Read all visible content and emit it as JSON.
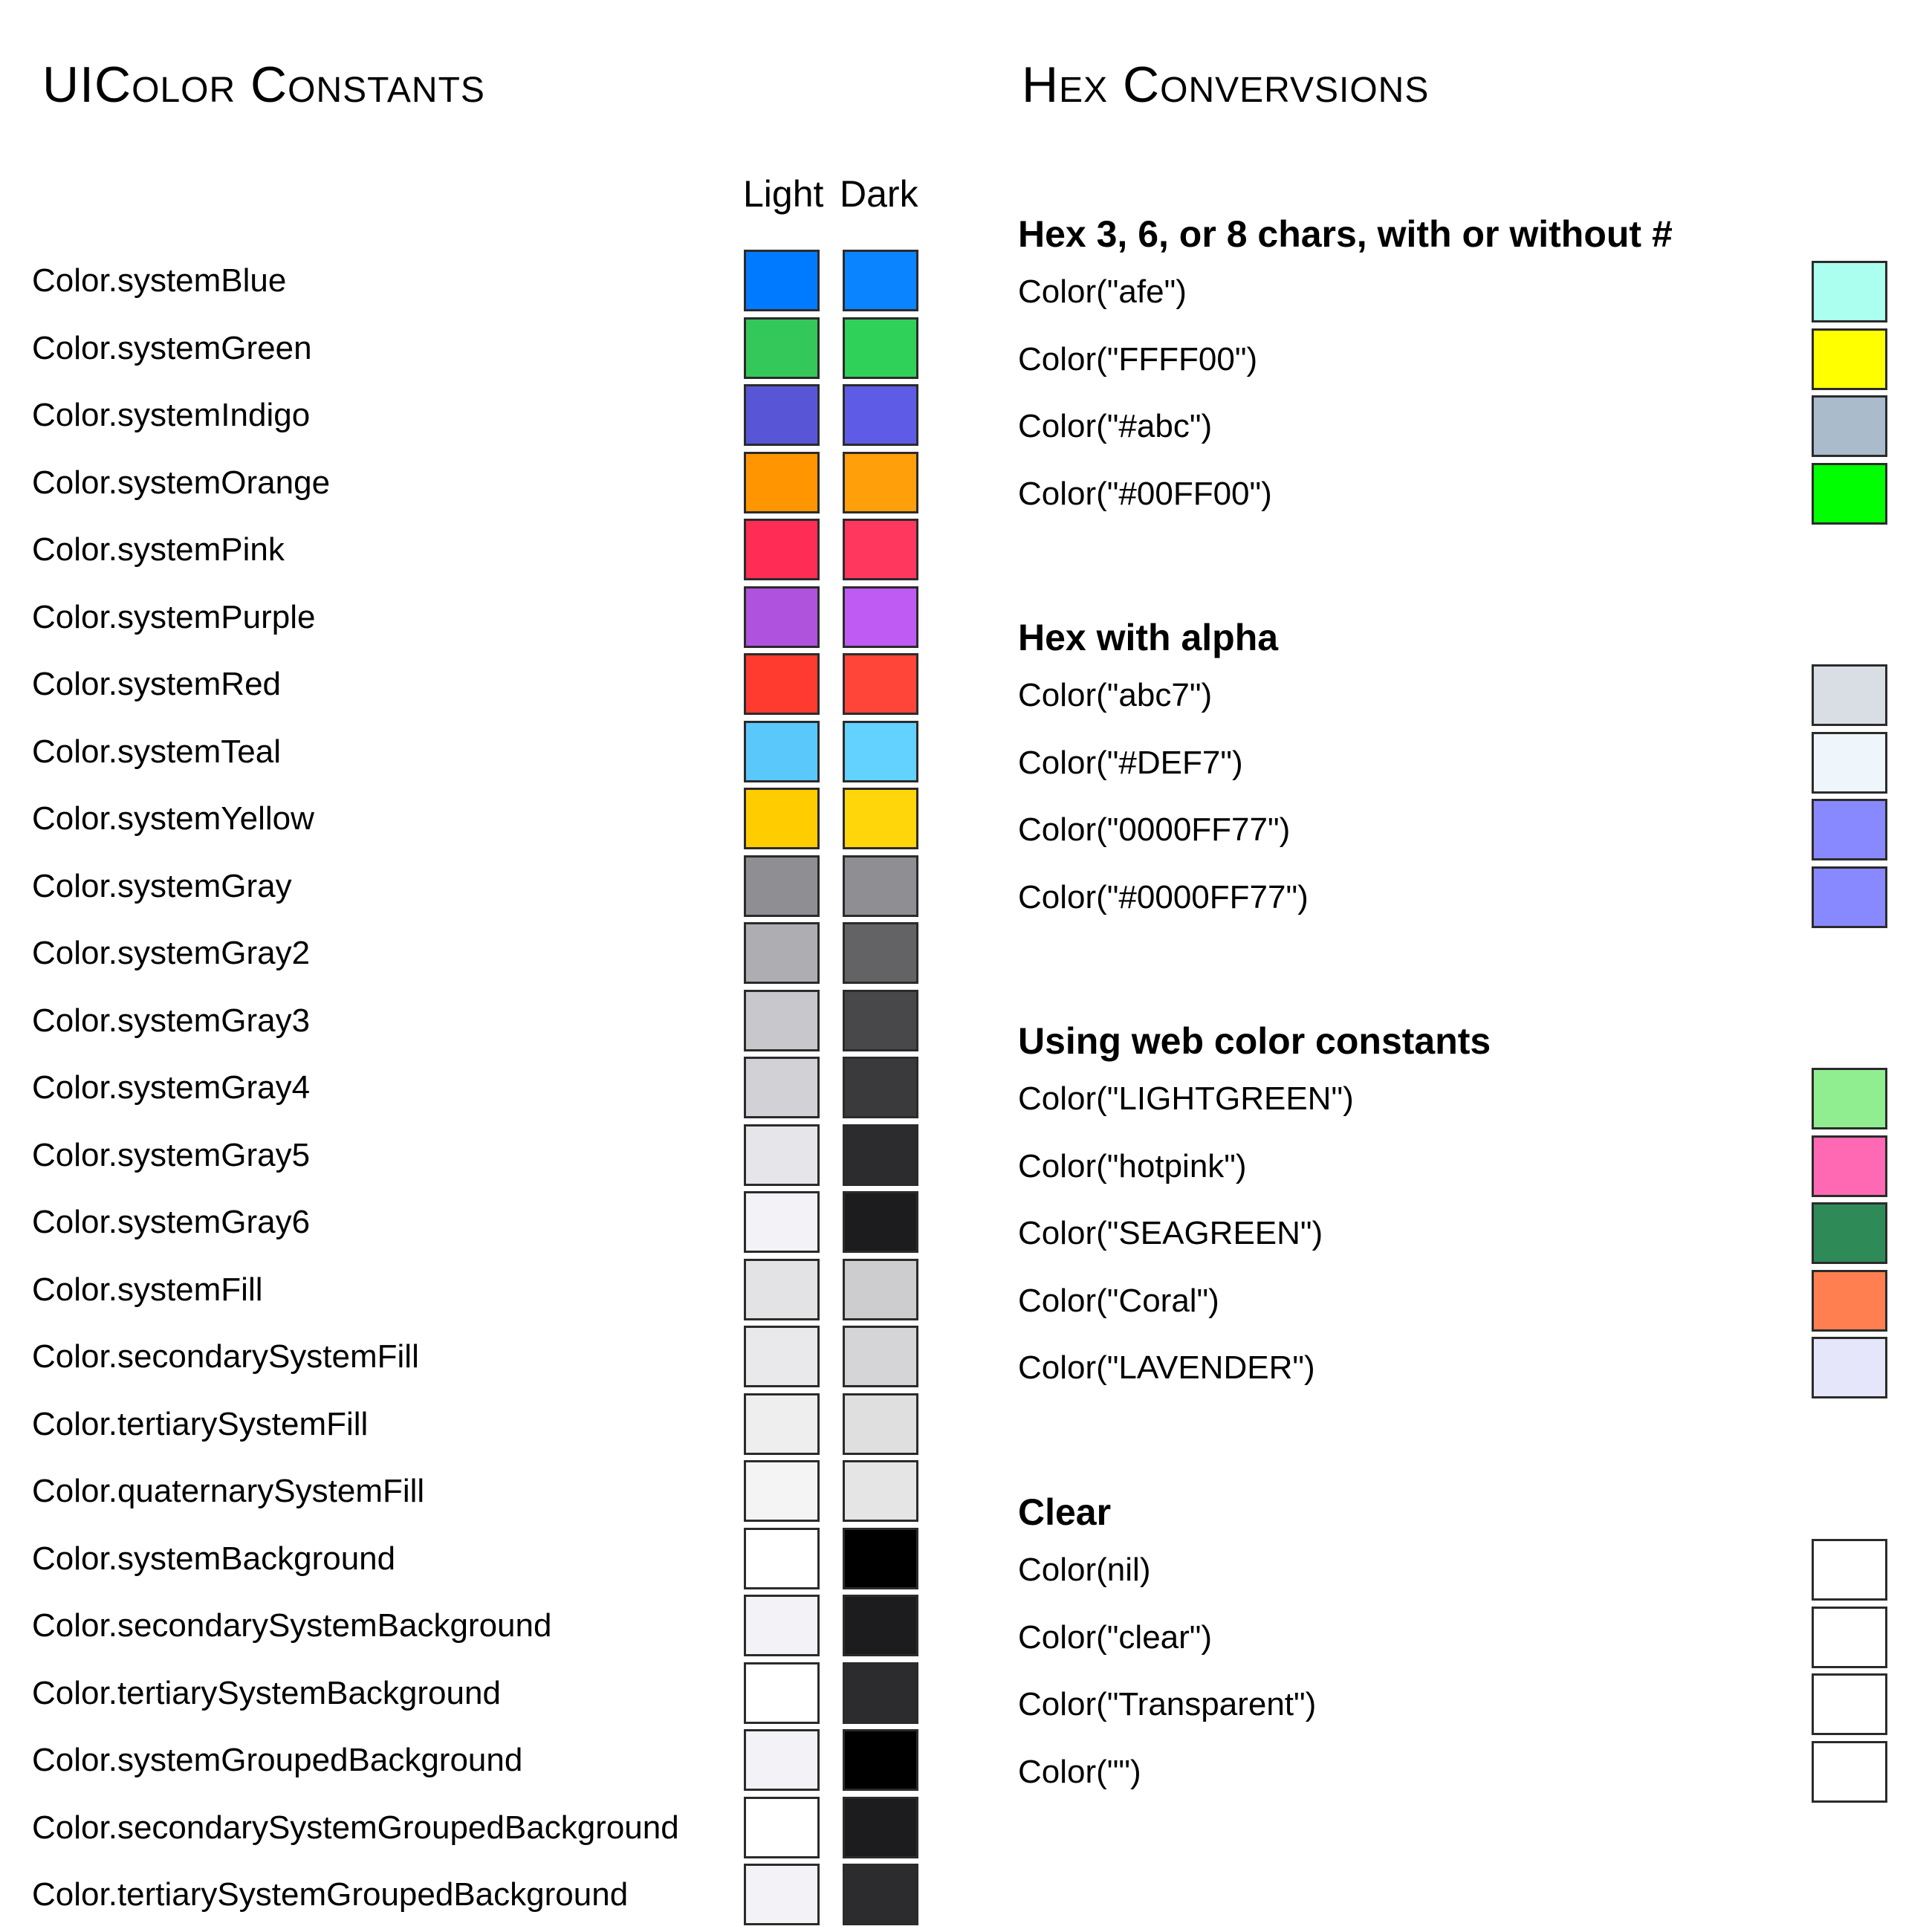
{
  "left_title": "UIColor Constants",
  "right_title": "Hex Convervsions",
  "columns": {
    "light": "Light",
    "dark": "Dark"
  },
  "constants": [
    {
      "label": "Color.systemBlue",
      "light": "#007AFF",
      "dark": "#0A84FF"
    },
    {
      "label": "Color.systemGreen",
      "light": "#34C759",
      "dark": "#30D158"
    },
    {
      "label": "Color.systemIndigo",
      "light": "#5856D6",
      "dark": "#5E5CE6"
    },
    {
      "label": "Color.systemOrange",
      "light": "#FF9500",
      "dark": "#FF9F0A"
    },
    {
      "label": "Color.systemPink",
      "light": "#FF2D55",
      "dark": "#FF375F"
    },
    {
      "label": "Color.systemPurple",
      "light": "#AF52DE",
      "dark": "#BF5AF2"
    },
    {
      "label": "Color.systemRed",
      "light": "#FF3B30",
      "dark": "#FF453A"
    },
    {
      "label": "Color.systemTeal",
      "light": "#5AC8FA",
      "dark": "#64D2FF"
    },
    {
      "label": "Color.systemYellow",
      "light": "#FFCC00",
      "dark": "#FFD60A"
    },
    {
      "label": "Color.systemGray",
      "light": "#8E8E93",
      "dark": "#8E8E93"
    },
    {
      "label": "Color.systemGray2",
      "light": "#AEAEB2",
      "dark": "#636366"
    },
    {
      "label": "Color.systemGray3",
      "light": "#C7C7CC",
      "dark": "#48484A"
    },
    {
      "label": "Color.systemGray4",
      "light": "#D1D1D6",
      "dark": "#3A3A3C"
    },
    {
      "label": "Color.systemGray5",
      "light": "#E5E5EA",
      "dark": "#2C2C2E"
    },
    {
      "label": "Color.systemGray6",
      "light": "#F2F2F7",
      "dark": "#1C1C1E"
    },
    {
      "label": "Color.systemFill",
      "light": "#E3E3E5",
      "dark": "#CDCDCF"
    },
    {
      "label": "Color.secondarySystemFill",
      "light": "#E9E9EB",
      "dark": "#D5D5D7"
    },
    {
      "label": "Color.tertiarySystemFill",
      "light": "#EEEEEF",
      "dark": "#DFDFE0"
    },
    {
      "label": "Color.quaternarySystemFill",
      "light": "#F4F4F5",
      "dark": "#E5E5E6"
    },
    {
      "label": "Color.systemBackground",
      "light": "#FFFFFF",
      "dark": "#000000"
    },
    {
      "label": "Color.secondarySystemBackground",
      "light": "#F2F2F7",
      "dark": "#1C1C1E"
    },
    {
      "label": "Color.tertiarySystemBackground",
      "light": "#FFFFFF",
      "dark": "#2C2C2E"
    },
    {
      "label": "Color.systemGroupedBackground",
      "light": "#F2F2F7",
      "dark": "#000000"
    },
    {
      "label": "Color.secondarySystemGroupedBackground",
      "light": "#FFFFFF",
      "dark": "#1C1C1E"
    },
    {
      "label": "Color.tertiarySystemGroupedBackground",
      "light": "#F2F2F7",
      "dark": "#2C2C2E"
    }
  ],
  "sections": [
    {
      "heading": "Hex 3, 6, or 8 chars, with or without #",
      "rows": [
        {
          "label": "Color(\"afe\")",
          "color": "#AAFFEE"
        },
        {
          "label": "Color(\"FFFF00\")",
          "color": "#FFFF00"
        },
        {
          "label": "Color(\"#abc\")",
          "color": "#AABBCC"
        },
        {
          "label": "Color(\"#00FF00\")",
          "color": "#00FF00"
        }
      ]
    },
    {
      "heading": "Hex with alpha",
      "rows": [
        {
          "label": "Color(\"abc7\")",
          "color": "#D8DEE4"
        },
        {
          "label": "Color(\"#DEF7\")",
          "color": "#EEF6FC"
        },
        {
          "label": "Color(\"0000FF77\")",
          "color": "#8989FF"
        },
        {
          "label": "Color(\"#0000FF77\")",
          "color": "#8989FF"
        }
      ]
    },
    {
      "heading": "Using web color constants",
      "rows": [
        {
          "label": "Color(\"LIGHTGREEN\")",
          "color": "#90EE90"
        },
        {
          "label": "Color(\"hotpink\")",
          "color": "#FF69B4"
        },
        {
          "label": "Color(\"SEAGREEN\")",
          "color": "#2E8B57"
        },
        {
          "label": "Color(\"Coral\")",
          "color": "#FF7F50"
        },
        {
          "label": "Color(\"LAVENDER\")",
          "color": "#E6E6FA"
        }
      ]
    },
    {
      "heading": "Clear",
      "rows": [
        {
          "label": "Color(nil)",
          "color": "transparent"
        },
        {
          "label": "Color(\"clear\")",
          "color": "transparent"
        },
        {
          "label": "Color(\"Transparent\")",
          "color": "transparent"
        },
        {
          "label": "Color(\"\")",
          "color": "transparent"
        }
      ]
    }
  ]
}
